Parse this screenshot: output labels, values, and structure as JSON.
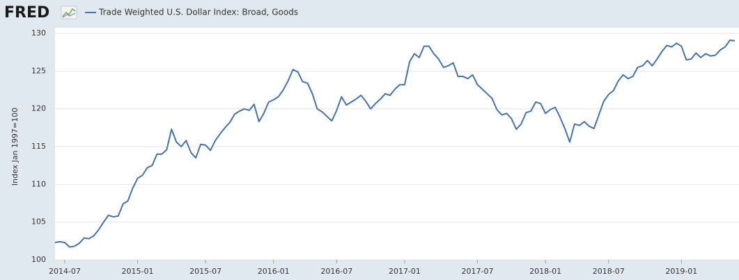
{
  "logo": "FRED",
  "chart_data": {
    "type": "line",
    "y_label": "Index Jan 1997=100",
    "categories": [
      null,
      null,
      "2014-07",
      null,
      null,
      null,
      null,
      null,
      null,
      null,
      null,
      null,
      null,
      null,
      null,
      null,
      null,
      "2015-01",
      null,
      null,
      null,
      null,
      null,
      null,
      null,
      null,
      null,
      null,
      null,
      null,
      null,
      "2015-07",
      null,
      null,
      null,
      null,
      null,
      null,
      null,
      null,
      null,
      null,
      null,
      null,
      null,
      "2016-01",
      null,
      null,
      null,
      null,
      null,
      null,
      null,
      null,
      null,
      null,
      null,
      null,
      "2016-07",
      null,
      null,
      null,
      null,
      null,
      null,
      null,
      null,
      null,
      null,
      null,
      null,
      null,
      "2017-01",
      null,
      null,
      null,
      null,
      null,
      null,
      null,
      null,
      null,
      null,
      null,
      null,
      null,
      null,
      "2017-07",
      null,
      null,
      null,
      null,
      null,
      null,
      null,
      null,
      null,
      null,
      null,
      null,
      null,
      "2018-01",
      null,
      null,
      null,
      null,
      null,
      null,
      null,
      null,
      null,
      null,
      null,
      null,
      "2018-07",
      null,
      null,
      null,
      null,
      null,
      null,
      null,
      null,
      null,
      null,
      null,
      null,
      null,
      null,
      "2019-01",
      null,
      null,
      null,
      null,
      null,
      null,
      null,
      null,
      null,
      null,
      null
    ],
    "series": [
      {
        "name": "Trade Weighted U.S. Dollar Index: Broad, Goods",
        "color": "#4572a7",
        "values": [
          102.3,
          102.4,
          102.3,
          101.7,
          101.8,
          102.2,
          102.9,
          102.8,
          103.2,
          104,
          105,
          105.9,
          105.7,
          105.8,
          107.4,
          107.8,
          109.5,
          110.8,
          111.2,
          112.2,
          112.5,
          114,
          114,
          114.6,
          117.3,
          115.6,
          115,
          115.8,
          114.2,
          113.5,
          115.3,
          115.2,
          114.5,
          115.8,
          116.7,
          117.5,
          118.2,
          119.3,
          119.7,
          120,
          119.8,
          120.6,
          118.3,
          119.4,
          120.9,
          121.2,
          121.6,
          122.5,
          123.7,
          125.2,
          124.9,
          123.6,
          123.4,
          122,
          120,
          119.6,
          119,
          118.4,
          119.8,
          121.6,
          120.5,
          120.9,
          121.3,
          121.8,
          121,
          120,
          120.7,
          121.3,
          122,
          121.8,
          122.6,
          123.2,
          123.2,
          126.2,
          127.3,
          126.8,
          128.3,
          128.3,
          127.3,
          126.6,
          125.5,
          125.7,
          126.1,
          124.3,
          124.3,
          124,
          124.5,
          123.2,
          122.6,
          122,
          121.4,
          119.9,
          119.2,
          119.4,
          118.7,
          117.3,
          118,
          119.5,
          119.7,
          120.9,
          120.7,
          119.4,
          119.9,
          120.2,
          118.9,
          117.4,
          115.6,
          118,
          117.8,
          118.3,
          117.7,
          117.4,
          119.2,
          121,
          121.9,
          122.4,
          123.7,
          124.5,
          124,
          124.3,
          125.5,
          125.7,
          126.4,
          125.7,
          126.6,
          127.6,
          128.4,
          128.2,
          128.7,
          128.3,
          126.5,
          126.6,
          127.4,
          126.8,
          127.3,
          127,
          127.1,
          127.8,
          128.2,
          129.1,
          129
        ]
      }
    ],
    "ylim": [
      100,
      130
    ],
    "yticks": [
      100,
      105,
      110,
      115,
      120,
      125,
      130
    ],
    "grid": true
  }
}
